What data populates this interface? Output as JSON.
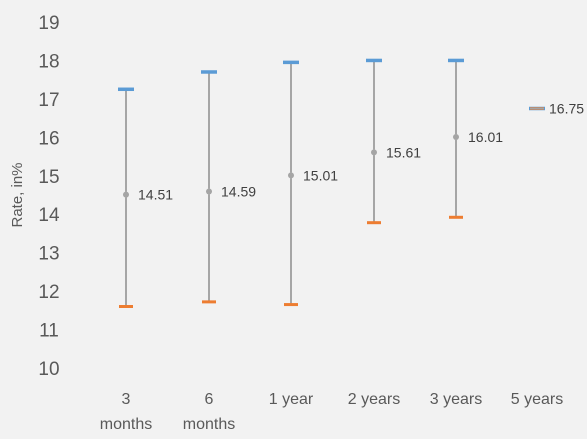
{
  "chart_data": {
    "type": "scatter",
    "title": "",
    "xlabel": "",
    "ylabel": "Rate, in%",
    "ylim": [
      10,
      19
    ],
    "yticks": [
      10,
      11,
      12,
      13,
      14,
      15,
      16,
      17,
      18,
      19
    ],
    "grid": false,
    "categories": [
      [
        "3",
        "months"
      ],
      [
        "6",
        "months"
      ],
      [
        "1 year"
      ],
      [
        "2 years"
      ],
      [
        "3 years"
      ],
      [
        "5 years"
      ]
    ],
    "series": [
      {
        "name": "",
        "kind": "high",
        "values": [
          17.25,
          17.7,
          17.95,
          18.0,
          18.0,
          16.75
        ]
      },
      {
        "name": "",
        "kind": "low",
        "values": [
          11.6,
          11.72,
          11.65,
          13.78,
          13.92,
          16.75
        ]
      },
      {
        "name": "",
        "kind": "point",
        "values": [
          14.51,
          14.59,
          15.01,
          15.61,
          16.01,
          16.75
        ]
      }
    ],
    "data_labels": [
      "14.51",
      "14.59",
      "15.01",
      "15.61",
      "16.01",
      "16.75"
    ],
    "colors": {
      "high": "#5b9bd5",
      "low": "#ed7d31",
      "point": "#a5a5a5",
      "range_line": "#595959",
      "background": "#f2f2f2"
    }
  }
}
